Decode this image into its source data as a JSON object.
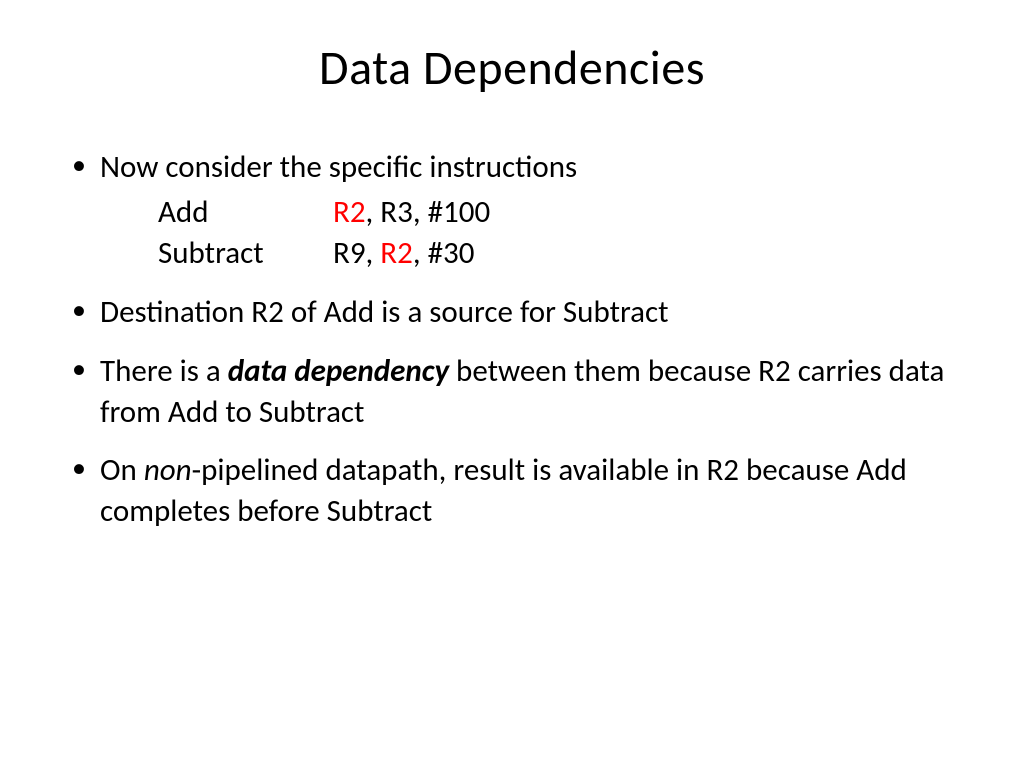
{
  "slide": {
    "title": "Data Dependencies",
    "title_fontsize": 48,
    "body_fontsize": 31,
    "background_color": "#ffffff",
    "text_color": "#000000",
    "highlight_color": "#ff0000",
    "bullets": {
      "b1": {
        "lead": "Now consider the specific instructions",
        "instr1": {
          "op": "Add",
          "d": "R2",
          "sep1": ", ",
          "s1": "R3",
          "sep2": ", ",
          "imm": "#100"
        },
        "instr2": {
          "op": "Subtract",
          "d": "R9",
          "sep1": ", ",
          "s1": "R2",
          "sep2": ", ",
          "imm": "#30"
        }
      },
      "b2": "Destination R2 of Add is a source for Subtract",
      "b3": {
        "t1": "There is a ",
        "em": "data dependency",
        "t2": " between them because R2 carries data from Add to Subtract"
      },
      "b4": {
        "t1": "On ",
        "em": "non",
        "t2": "-pipelined datapath, result is available in R2 because Add completes before Subtract"
      }
    }
  }
}
